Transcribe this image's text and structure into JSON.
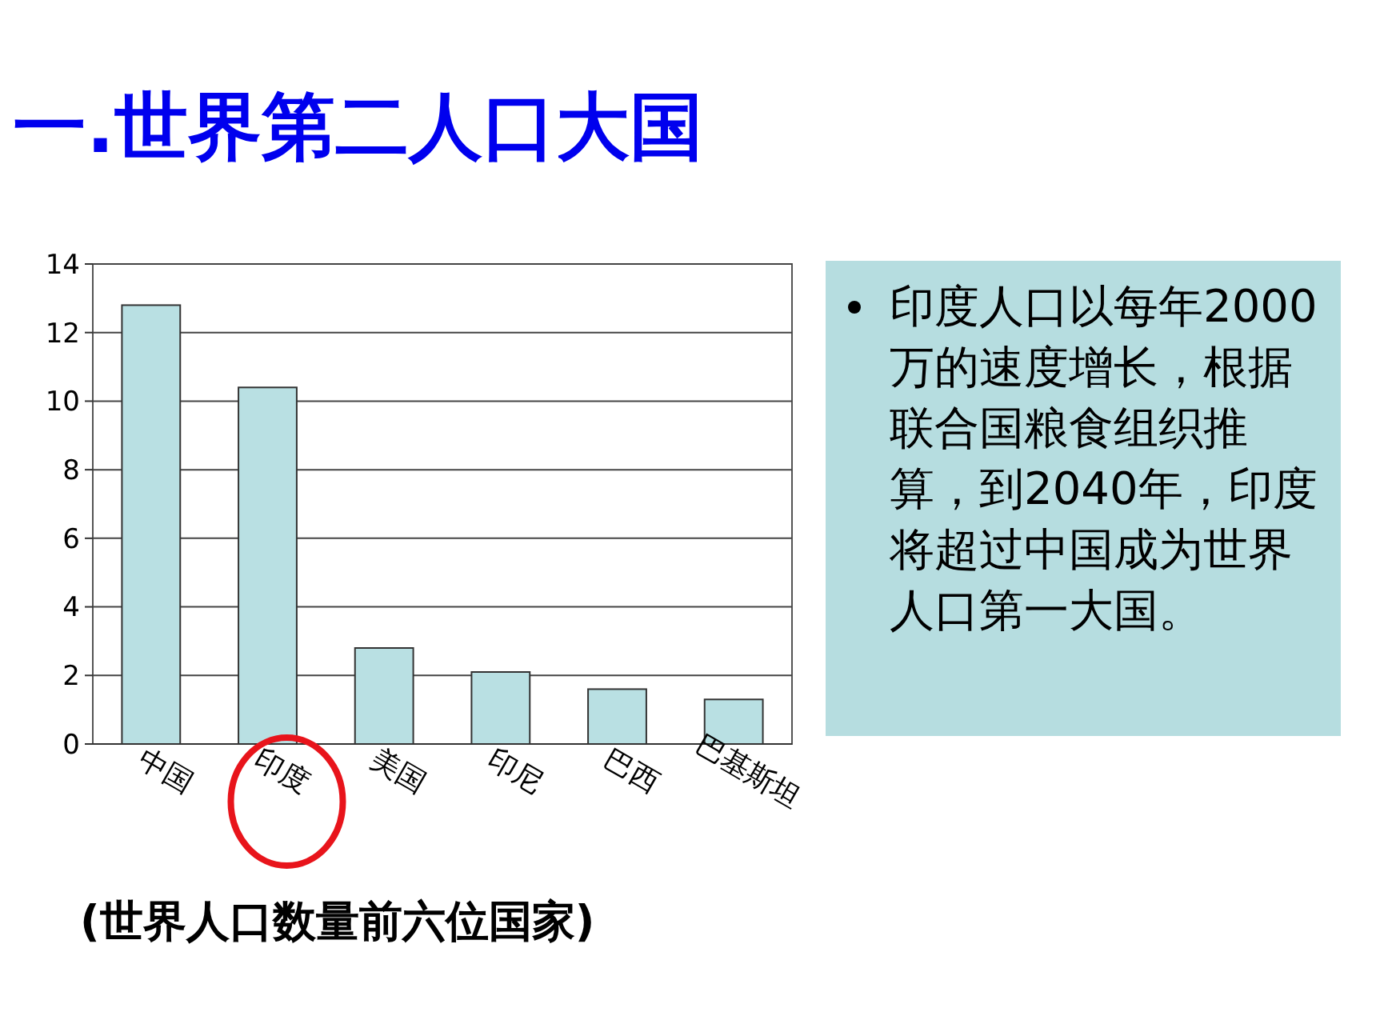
{
  "chart_data": {
    "type": "bar",
    "title": "一.世界第二人口大国",
    "categories": [
      "中国",
      "印度",
      "美国",
      "印尼",
      "巴西",
      "巴基斯坦"
    ],
    "values": [
      12.8,
      10.4,
      2.8,
      2.1,
      1.6,
      1.3
    ],
    "color": "#b9e0e3",
    "ylim": [
      0,
      14
    ],
    "yticks": [
      0,
      2,
      4,
      6,
      8,
      10,
      12,
      14
    ],
    "grid": "y",
    "annotations": [
      "印度人口以每年2000万的速度增长，根据联合国粮食组织推算，到2040年，印度将超过中国成为世界人口第一大国。",
      "(世界人口数量前六位国家)"
    ]
  }
}
